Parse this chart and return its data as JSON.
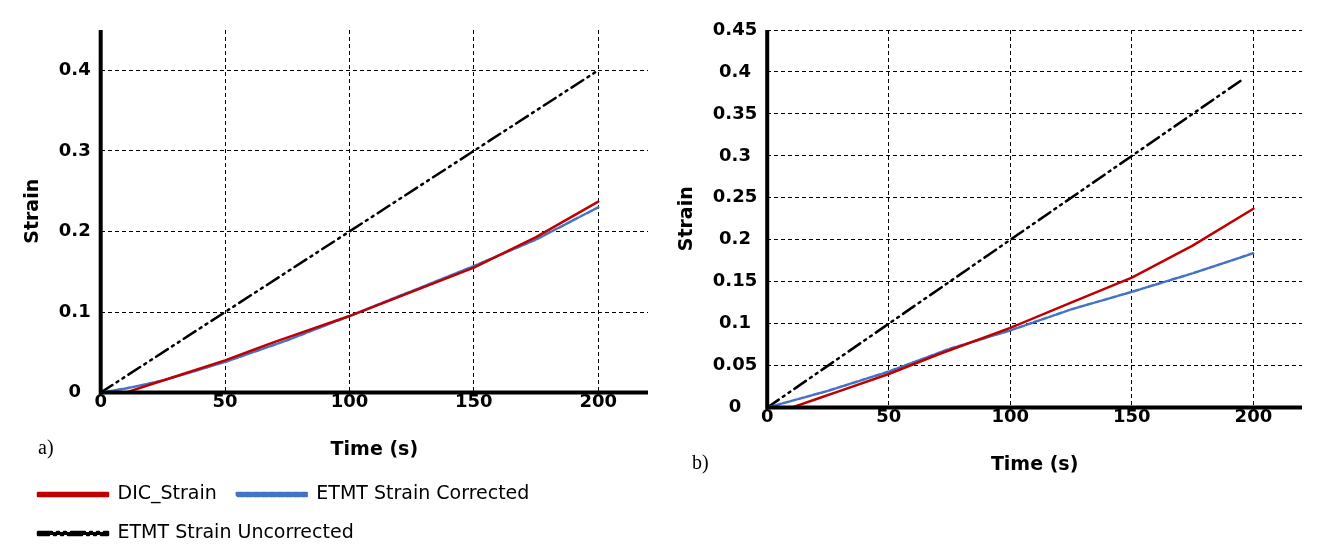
{
  "chart_data": [
    {
      "type": "line",
      "xlabel": "Time (s)",
      "ylabel": "Strain",
      "xlim": [
        0,
        220
      ],
      "xticks": [
        0,
        50,
        100,
        150,
        200
      ],
      "ylim": [
        0,
        0.45
      ],
      "yticks": [
        0,
        0.1,
        0.2,
        0.3,
        0.4
      ],
      "grid": true,
      "legend": "bottom",
      "annotations": [
        "a)"
      ],
      "series": [
        {
          "name": "DIC_Strain",
          "color": "#c00000",
          "line_style": "solid",
          "x": [
            0,
            10,
            20,
            30,
            50,
            70,
            100,
            125,
            150,
            175,
            200
          ],
          "values": [
            0,
            0,
            0.01,
            0.02,
            0.04,
            0.063,
            0.095,
            0.125,
            0.155,
            0.193,
            0.237
          ]
        },
        {
          "name": "ETMT Strain Corrected",
          "color": "#4472c4",
          "line_style": "dashed",
          "x": [
            0,
            10,
            25,
            50,
            75,
            100,
            125,
            150,
            175,
            200
          ],
          "values": [
            0,
            0.005,
            0.015,
            0.038,
            0.065,
            0.095,
            0.126,
            0.157,
            0.19,
            0.23
          ]
        },
        {
          "name": "ETMT Strain Uncorrected",
          "color": "#000000",
          "line_style": "dashdotdot",
          "x": [
            0,
            200
          ],
          "values": [
            0,
            0.4
          ]
        }
      ]
    },
    {
      "type": "line",
      "xlabel": "Time (s)",
      "ylabel": "Strain",
      "xlim": [
        0,
        220
      ],
      "xticks": [
        0,
        50,
        100,
        150,
        200
      ],
      "ylim": [
        0,
        0.45
      ],
      "yticks": [
        0,
        0.05,
        0.1,
        0.15,
        0.2,
        0.25,
        0.3,
        0.35,
        0.4,
        0.45
      ],
      "grid": true,
      "annotations": [
        "b)"
      ],
      "series": [
        {
          "color": "#c00000",
          "line_style": "solid",
          "x": [
            0,
            10,
            20,
            30,
            50,
            70,
            100,
            125,
            150,
            175,
            200
          ],
          "values": [
            0,
            0,
            0.01,
            0.02,
            0.04,
            0.063,
            0.095,
            0.125,
            0.155,
            0.193,
            0.237
          ]
        },
        {
          "color": "#4472c4",
          "line_style": "dashed",
          "x": [
            0,
            10,
            25,
            50,
            75,
            100,
            125,
            150,
            175,
            200
          ],
          "values": [
            0,
            0.008,
            0.02,
            0.043,
            0.07,
            0.092,
            0.117,
            0.138,
            0.16,
            0.184
          ]
        },
        {
          "color": "#000000",
          "line_style": "dashdotdot",
          "x": [
            0,
            196
          ],
          "values": [
            0,
            0.392
          ]
        }
      ]
    }
  ]
}
